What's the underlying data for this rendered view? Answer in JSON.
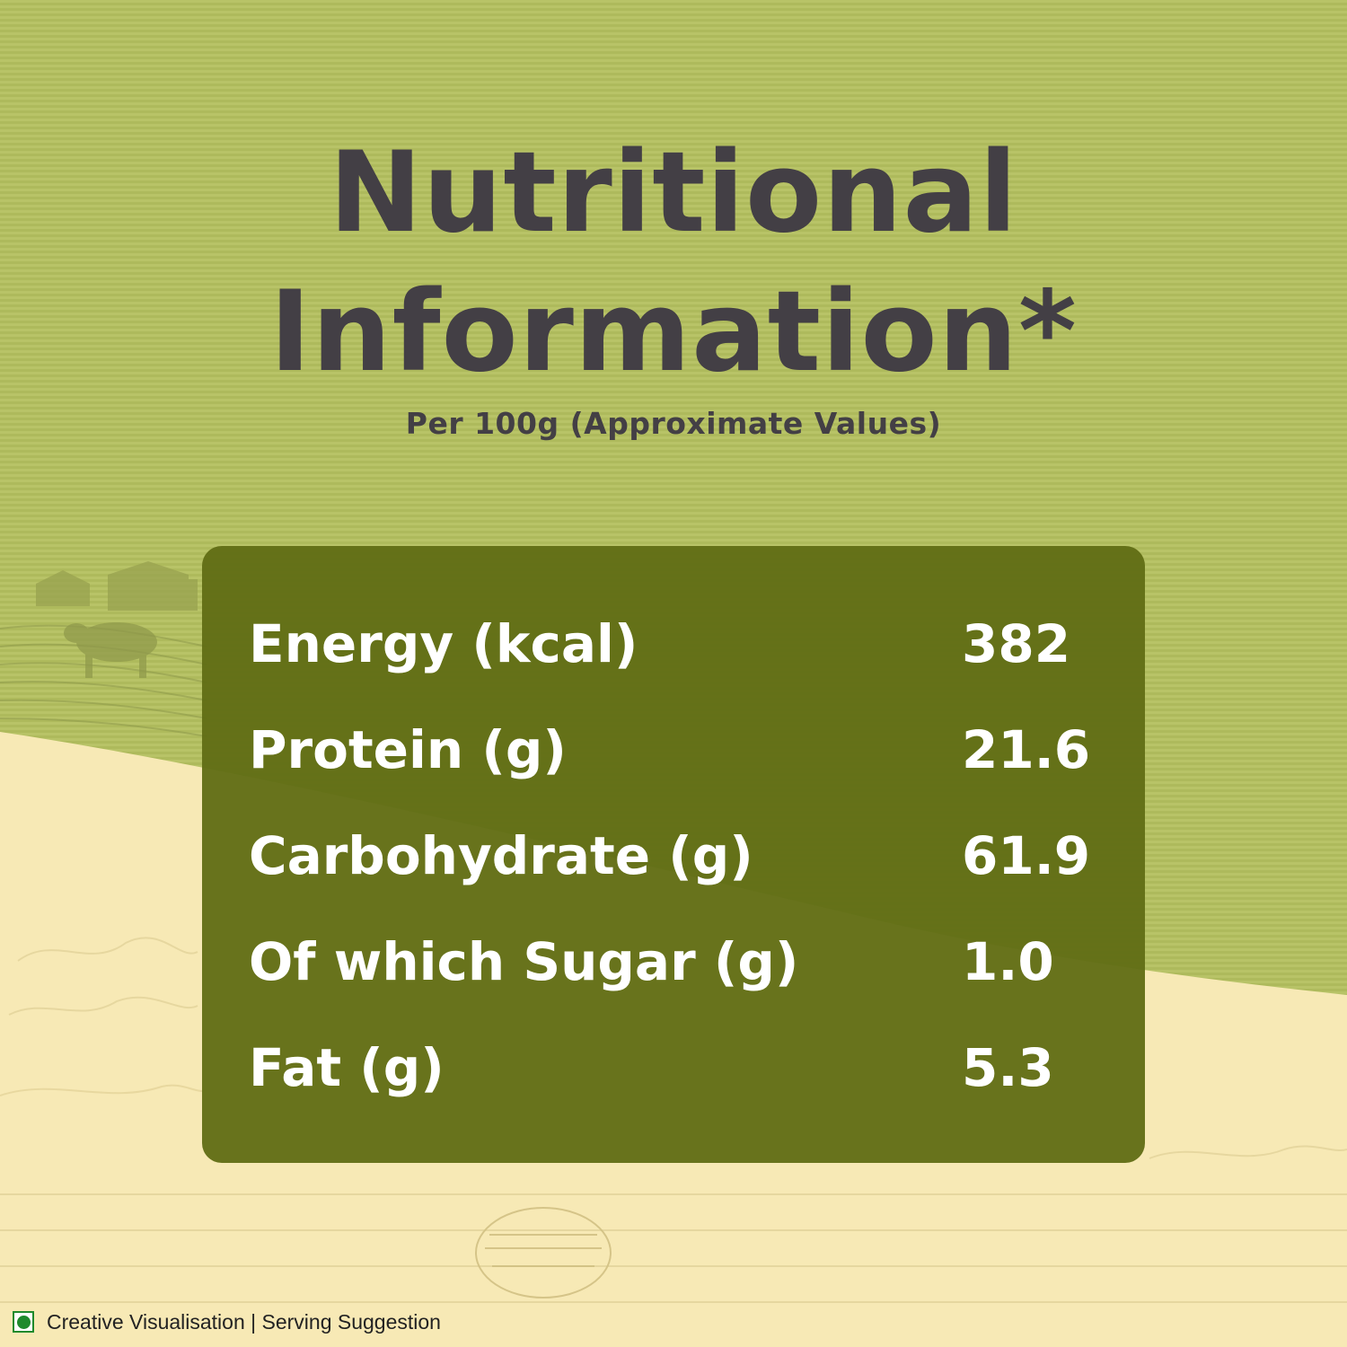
{
  "heading": {
    "line1": "Nutritional",
    "line2": "Information*",
    "subtitle": "Per 100g (Approximate Values)"
  },
  "nutrition": {
    "rows": [
      {
        "label": "Energy (kcal)",
        "value": "382"
      },
      {
        "label": "Protein (g)",
        "value": "21.6"
      },
      {
        "label": "Carbohydrate (g)",
        "value": "61.9"
      },
      {
        "label": "Of which Sugar (g)",
        "value": "1.0"
      },
      {
        "label": "Fat (g)",
        "value": "5.3"
      }
    ]
  },
  "footer": {
    "text": "Creative Visualisation | Serving Suggestion",
    "icon": "veg-mark-icon"
  },
  "colors": {
    "background_green": "#b4c05f",
    "panel_green": "#606d14",
    "cream": "#f6e8b0",
    "heading_text": "#433f45",
    "veg_mark": "#1f8a2c"
  }
}
